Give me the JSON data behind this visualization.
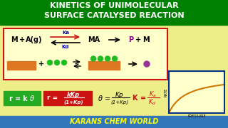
{
  "title_line1": "KINETICS OF UNIMOLECULAR",
  "title_line2": "SURFACE CATALYSED REACTION",
  "title_bg": "#008000",
  "title_color": "#FFFFFF",
  "main_bg": "#EEEE88",
  "box_bg": "#FFFFCC",
  "box_border": "#CC1111",
  "footer_text": "KARANS CHEM WORLD",
  "footer_bg": "#3377BB",
  "footer_color": "#FFFF00",
  "green_box_color": "#22AA22",
  "red_box_color": "#CC1111",
  "orange_rect": "#DD7722",
  "green_dot": "#22BB22",
  "purple_dot": "#993399",
  "Ka_Kd_color": "#0000CC",
  "K_color": "#CC1111",
  "graph_border": "#003388",
  "graph_bg": "#FFFFCC",
  "curve_color": "#CC7700"
}
